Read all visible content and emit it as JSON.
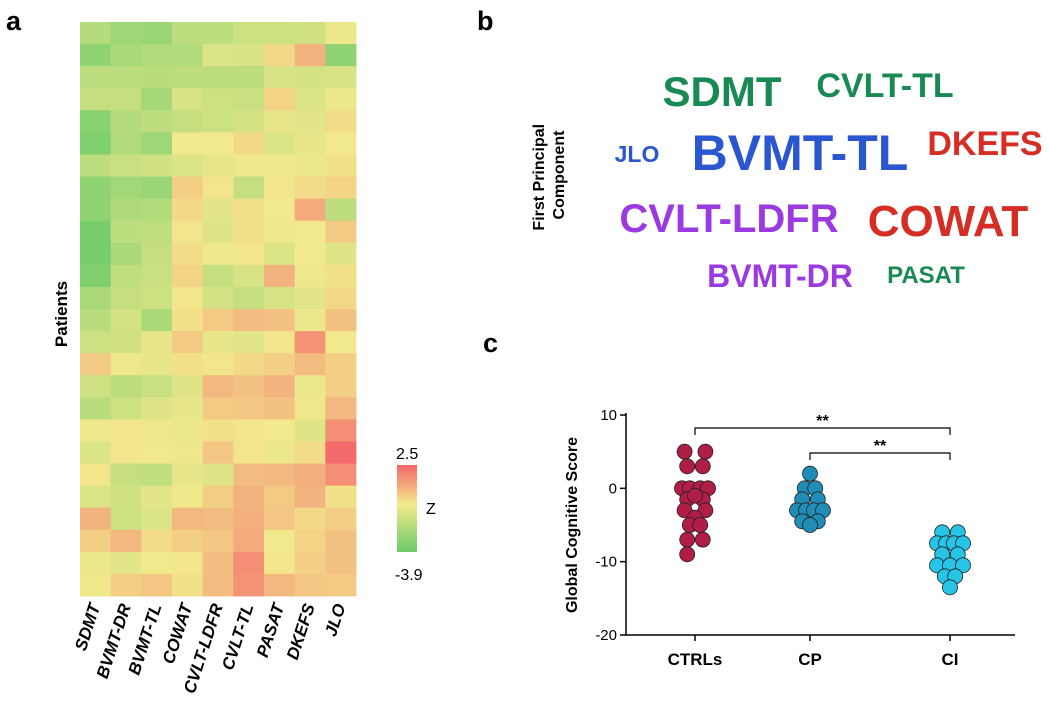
{
  "panels": {
    "a": "a",
    "b": "b",
    "c": "c"
  },
  "chart_data": [
    {
      "type": "heatmap",
      "panel": "a",
      "ylabel": "Patients",
      "xcategories": [
        "SDMT",
        "BVMT-DR",
        "BVMT-TL",
        "COWAT",
        "CVLT-LDFR",
        "CVLT-TL",
        "PASAT",
        "DKEFS",
        "JLO"
      ],
      "n_patients": 26,
      "colorbar": {
        "label": "Z",
        "max": 2.5,
        "min": -3.9,
        "max_label": "2.5",
        "min_label": "-3.9",
        "colors": [
          "#6dcc6a",
          "#f3e98c",
          "#f4666a"
        ]
      },
      "values": [
        [
          -2.0,
          -2.6,
          -2.7,
          -1.8,
          -1.8,
          -1.4,
          -1.4,
          -1.3,
          -0.6
        ],
        [
          -3.0,
          -2.3,
          -2.1,
          -2.1,
          -1.0,
          -1.1,
          0.0,
          0.8,
          -3.0
        ],
        [
          -1.8,
          -1.8,
          -1.9,
          -1.8,
          -1.8,
          -1.8,
          -1.1,
          -1.2,
          -1.1
        ],
        [
          -1.6,
          -1.6,
          -2.4,
          -1.1,
          -1.4,
          -1.5,
          0.1,
          -1.0,
          -0.6
        ],
        [
          -3.2,
          -2.0,
          -1.8,
          -1.6,
          -1.4,
          -1.2,
          -0.7,
          -0.8,
          -0.1
        ],
        [
          -3.4,
          -2.1,
          -2.6,
          -0.4,
          -0.4,
          0.0,
          -1.0,
          -0.7,
          -0.4
        ],
        [
          -1.8,
          -1.5,
          -1.3,
          -1.0,
          -0.7,
          -0.5,
          -0.5,
          -0.6,
          -0.2
        ],
        [
          -3.0,
          -2.5,
          -2.7,
          0.2,
          -0.3,
          -1.6,
          -0.3,
          -0.1,
          0.1
        ],
        [
          -3.0,
          -2.2,
          -2.1,
          0.0,
          -0.8,
          -0.2,
          -0.4,
          1.0,
          -1.8
        ],
        [
          -3.6,
          -1.8,
          -1.7,
          -0.3,
          -0.9,
          -0.2,
          -0.5,
          -0.4,
          0.3
        ],
        [
          -3.6,
          -2.3,
          -1.6,
          -0.1,
          -0.5,
          -0.3,
          -1.0,
          -0.4,
          -0.9
        ],
        [
          -3.4,
          -1.7,
          -1.5,
          0.1,
          -1.6,
          -1.1,
          0.8,
          -0.5,
          -0.2
        ],
        [
          -2.3,
          -1.6,
          -1.4,
          -0.3,
          -1.2,
          -1.6,
          -1.1,
          -0.8,
          0.0
        ],
        [
          -1.9,
          -1.2,
          -2.3,
          -0.2,
          0.3,
          0.6,
          0.5,
          -0.6,
          0.5
        ],
        [
          -1.4,
          -1.3,
          -0.7,
          0.3,
          -0.7,
          -0.8,
          -0.3,
          1.5,
          -0.4
        ],
        [
          0.3,
          -0.5,
          -0.7,
          -0.2,
          -0.3,
          0.0,
          0.2,
          0.6,
          0.2
        ],
        [
          -1.3,
          -1.8,
          -1.5,
          -0.9,
          0.7,
          0.5,
          0.8,
          -0.6,
          0.2
        ],
        [
          -1.9,
          -1.4,
          -0.9,
          -0.7,
          0.3,
          0.4,
          0.5,
          -0.5,
          0.7
        ],
        [
          -0.5,
          -0.3,
          -0.5,
          -0.6,
          -0.2,
          -0.3,
          -0.4,
          -0.9,
          1.6
        ],
        [
          -1.0,
          -0.3,
          -0.4,
          -0.5,
          0.4,
          -0.3,
          -0.6,
          -0.1,
          2.4
        ],
        [
          -0.3,
          -1.6,
          -1.7,
          -0.7,
          -0.9,
          0.6,
          0.7,
          0.9,
          1.6
        ],
        [
          -1.0,
          -1.3,
          -0.8,
          -0.5,
          0.2,
          0.8,
          0.3,
          0.8,
          -0.2
        ],
        [
          0.8,
          -1.4,
          -1.0,
          0.7,
          0.6,
          0.9,
          0.4,
          0.0,
          0.2
        ],
        [
          0.2,
          0.7,
          -0.1,
          0.2,
          0.4,
          1.0,
          -0.4,
          0.1,
          0.5
        ],
        [
          -0.6,
          -0.8,
          -0.4,
          -0.3,
          0.6,
          1.6,
          -0.3,
          0.2,
          0.5
        ],
        [
          -0.5,
          0.2,
          0.4,
          -0.2,
          0.6,
          1.5,
          0.7,
          0.4,
          0.3
        ]
      ]
    },
    {
      "type": "other",
      "panel": "b",
      "ylabel": "First Principal Component",
      "ylabel_lines": [
        "First Principal",
        "Component"
      ],
      "words": [
        {
          "text": "SDMT",
          "color": "#1a8a55",
          "weight": 5
        },
        {
          "text": "CVLT-TL",
          "color": "#1a8a55",
          "weight": 4
        },
        {
          "text": "JLO",
          "color": "#2a56d0",
          "weight": 2
        },
        {
          "text": "BVMT-TL",
          "color": "#2a56d0",
          "weight": 8
        },
        {
          "text": "DKEFS",
          "color": "#d62d24",
          "weight": 4
        },
        {
          "text": "CVLT-LDFR",
          "color": "#9b3ae0",
          "weight": 5
        },
        {
          "text": "COWAT",
          "color": "#d62d24",
          "weight": 7
        },
        {
          "text": "BVMT-DR",
          "color": "#9b3ae0",
          "weight": 4
        },
        {
          "text": "PASAT",
          "color": "#1a8a55",
          "weight": 2
        }
      ]
    },
    {
      "type": "scatter",
      "panel": "c",
      "ylabel": "Global Cognitive Score",
      "ylim": [
        -20,
        10
      ],
      "yticks": [
        10,
        0,
        -10,
        -20
      ],
      "yticklabels": [
        "10",
        "0",
        "-10",
        "-20"
      ],
      "categories": [
        "CTRLs",
        "CP",
        "CI"
      ],
      "series": [
        {
          "name": "CTRLs",
          "color": "#b01e48",
          "points": [
            [
              -0.4,
              5
            ],
            [
              0.4,
              5
            ],
            [
              -0.3,
              3
            ],
            [
              0.3,
              3
            ],
            [
              -0.5,
              0
            ],
            [
              -0.2,
              0
            ],
            [
              0.2,
              0
            ],
            [
              0.5,
              0
            ],
            [
              -0.3,
              -1.5
            ],
            [
              0.3,
              -1.5
            ],
            [
              0.0,
              -1
            ],
            [
              -0.4,
              -3
            ],
            [
              0.4,
              -3
            ],
            [
              0.0,
              -4
            ],
            [
              -0.2,
              -5
            ],
            [
              0.2,
              -5
            ],
            [
              -0.3,
              -7
            ],
            [
              0.3,
              -7
            ],
            [
              -0.3,
              -9
            ]
          ]
        },
        {
          "name": "CP",
          "color": "#1f8db5",
          "points": [
            [
              0.0,
              2
            ],
            [
              -0.2,
              0
            ],
            [
              0.2,
              0
            ],
            [
              -0.3,
              -1.5
            ],
            [
              0.3,
              -1.5
            ],
            [
              -0.5,
              -3
            ],
            [
              -0.15,
              -3
            ],
            [
              0.15,
              -3
            ],
            [
              0.5,
              -3
            ],
            [
              -0.3,
              -4.5
            ],
            [
              0.3,
              -4.5
            ],
            [
              0.0,
              -5
            ]
          ]
        },
        {
          "name": "CI",
          "color": "#26c5e8",
          "points": [
            [
              -0.3,
              -6
            ],
            [
              0.3,
              -6
            ],
            [
              -0.5,
              -7.5
            ],
            [
              -0.15,
              -7.5
            ],
            [
              0.15,
              -7.5
            ],
            [
              0.5,
              -7.5
            ],
            [
              -0.3,
              -9
            ],
            [
              0.3,
              -9
            ],
            [
              -0.5,
              -10.5
            ],
            [
              0.0,
              -10.5
            ],
            [
              0.5,
              -10.5
            ],
            [
              -0.2,
              -12
            ],
            [
              0.2,
              -12
            ],
            [
              0.0,
              -13.5
            ]
          ]
        }
      ],
      "significance": [
        {
          "from": "CTRLs",
          "to": "CI",
          "label": "**"
        },
        {
          "from": "CP",
          "to": "CI",
          "label": "**"
        }
      ]
    }
  ]
}
